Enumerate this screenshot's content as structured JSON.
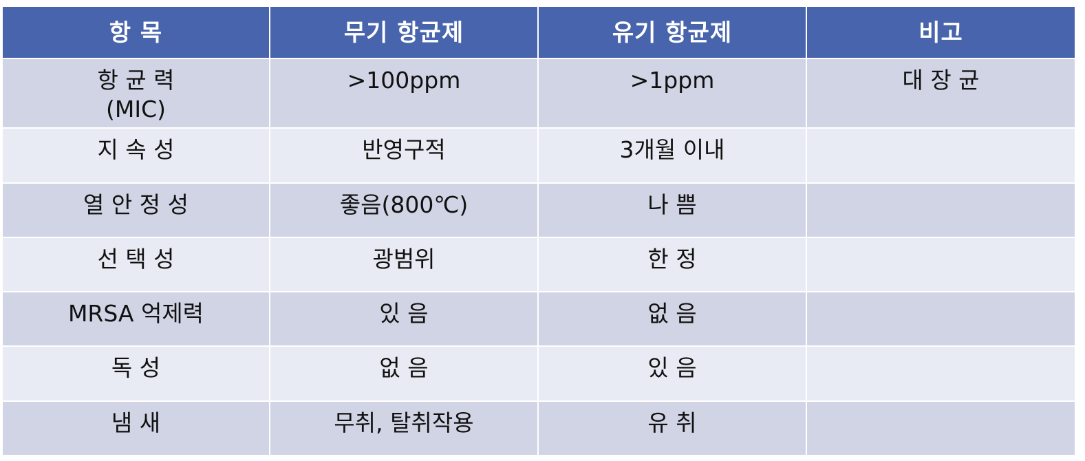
{
  "table": {
    "headers": [
      "항 목",
      "무기 항균제",
      "유기 항균제",
      "비고"
    ],
    "rows": [
      {
        "item_line1": "항 균 력",
        "item_line2": "(MIC)",
        "inorganic": ">100ppm",
        "organic": ">1ppm",
        "note": "대 장 균"
      },
      {
        "item": "지 속 성",
        "inorganic": "반영구적",
        "organic": "3개월 이내",
        "note": ""
      },
      {
        "item": "열 안 정 성",
        "inorganic": "좋음(800℃)",
        "organic": "나 쁨",
        "note": ""
      },
      {
        "item": "선 택 성",
        "inorganic": "광범위",
        "organic": "한 정",
        "note": ""
      },
      {
        "item": "MRSA 억제력",
        "inorganic": "있 음",
        "organic": "없 음",
        "note": ""
      },
      {
        "item": "독 성",
        "inorganic": "없 음",
        "organic": "있 음",
        "note": ""
      },
      {
        "item": "냄 새",
        "inorganic": "무취, 탈취작용",
        "organic": "유 취",
        "note": ""
      }
    ]
  },
  "colors": {
    "header_bg": "#4864ad",
    "header_text": "#ffffff",
    "row_dark": "#d0d4e5",
    "row_light": "#e9ebf4",
    "border": "#ffffff"
  }
}
